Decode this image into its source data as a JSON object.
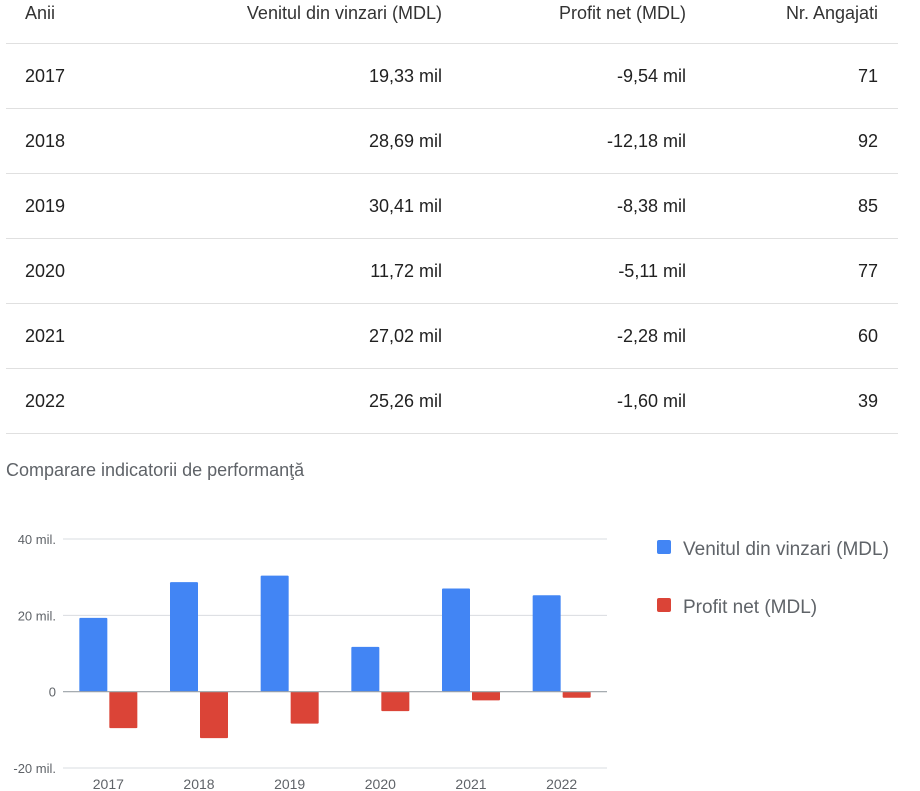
{
  "table": {
    "headers": [
      "Anii",
      "Venitul din vinzari (MDL)",
      "Profit net (MDL)",
      "Nr. Angajati"
    ],
    "rows": [
      [
        "2017",
        "19,33 mil",
        "-9,54 mil",
        "71"
      ],
      [
        "2018",
        "28,69 mil",
        "-12,18 mil",
        "92"
      ],
      [
        "2019",
        "30,41 mil",
        "-8,38 mil",
        "85"
      ],
      [
        "2020",
        "11,72 mil",
        "-5,11 mil",
        "77"
      ],
      [
        "2021",
        "27,02 mil",
        "-2,28 mil",
        "60"
      ],
      [
        "2022",
        "25,26 mil",
        "-1,60 mil",
        "39"
      ]
    ]
  },
  "chart_title": "Comparare indicatorii de performanţă",
  "chart_data": {
    "type": "bar",
    "title": "Comparare indicatorii de performanţă",
    "categories": [
      "2017",
      "2018",
      "2019",
      "2020",
      "2021",
      "2022"
    ],
    "series": [
      {
        "name": "Venitul din vinzari (MDL)",
        "values": [
          19.33,
          28.69,
          30.41,
          11.72,
          27.02,
          25.26
        ],
        "color": "#4285f4"
      },
      {
        "name": "Profit net (MDL)",
        "values": [
          -9.54,
          -12.18,
          -8.38,
          -5.11,
          -2.28,
          -1.6
        ],
        "color": "#db4437"
      }
    ],
    "ylim": [
      -20,
      40
    ],
    "yticks": [
      {
        "value": 40,
        "label": "40 mil."
      },
      {
        "value": 20,
        "label": "20 mil."
      },
      {
        "value": 0,
        "label": "0"
      },
      {
        "value": -20,
        "label": "-20 mil."
      }
    ],
    "grid": true,
    "legend_position": "right"
  }
}
